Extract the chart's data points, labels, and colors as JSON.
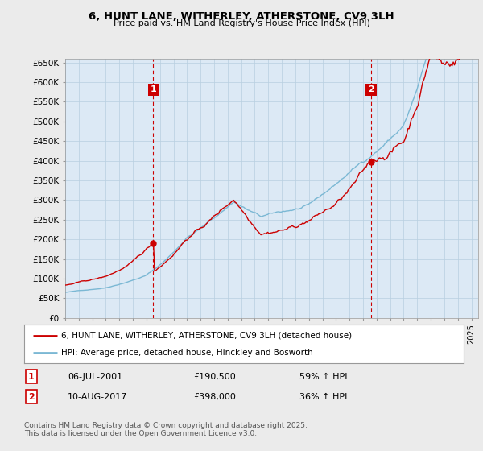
{
  "title": "6, HUNT LANE, WITHERLEY, ATHERSTONE, CV9 3LH",
  "subtitle": "Price paid vs. HM Land Registry's House Price Index (HPI)",
  "ylim": [
    0,
    660000
  ],
  "yticks": [
    0,
    50000,
    100000,
    150000,
    200000,
    250000,
    300000,
    350000,
    400000,
    450000,
    500000,
    550000,
    600000,
    650000
  ],
  "yticklabels": [
    "£0",
    "£50K",
    "£100K",
    "£150K",
    "£200K",
    "£250K",
    "£300K",
    "£350K",
    "£400K",
    "£450K",
    "£500K",
    "£550K",
    "£600K",
    "£650K"
  ],
  "hpi_color": "#7bb8d4",
  "price_color": "#cc0000",
  "vline_color": "#cc0000",
  "sale1_year": 2001.51,
  "sale1_price": 190500,
  "sale2_year": 2017.6,
  "sale2_price": 398000,
  "legend_line1": "6, HUNT LANE, WITHERLEY, ATHERSTONE, CV9 3LH (detached house)",
  "legend_line2": "HPI: Average price, detached house, Hinckley and Bosworth",
  "table_row1_num": "1",
  "table_row1_date": "06-JUL-2001",
  "table_row1_price": "£190,500",
  "table_row1_hpi": "59% ↑ HPI",
  "table_row2_num": "2",
  "table_row2_date": "10-AUG-2017",
  "table_row2_price": "£398,000",
  "table_row2_hpi": "36% ↑ HPI",
  "footnote": "Contains HM Land Registry data © Crown copyright and database right 2025.\nThis data is licensed under the Open Government Licence v3.0.",
  "bg_color": "#ebebeb",
  "plot_bg_color": "#dce9f5",
  "grid_color": "#b8cfe0"
}
